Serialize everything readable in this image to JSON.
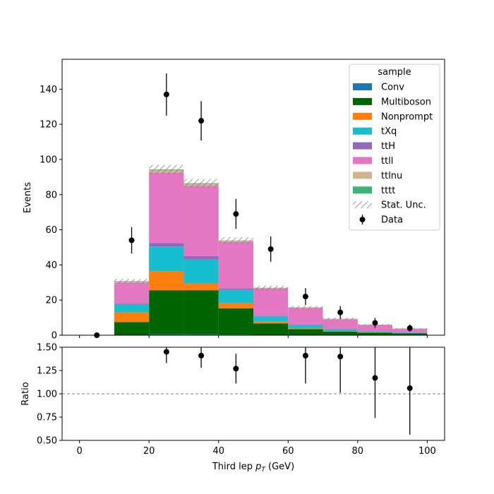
{
  "chart_data": [
    {
      "type": "bar",
      "stacked": true,
      "ylabel": "Events",
      "xlim": [
        -5,
        105
      ],
      "ylim": [
        0,
        157
      ],
      "xticks": [
        0,
        20,
        40,
        60,
        80,
        100
      ],
      "yticks": [
        0,
        20,
        40,
        60,
        80,
        100,
        120,
        140
      ],
      "bin_edges": [
        0,
        10,
        20,
        30,
        40,
        50,
        60,
        70,
        80,
        90,
        100
      ],
      "series": [
        {
          "name": "Conv",
          "color": "#1f77b4",
          "values": [
            0,
            0,
            0.5,
            0.5,
            0.3,
            0.2,
            0,
            0,
            0,
            0
          ]
        },
        {
          "name": "Multiboson",
          "color": "#006400",
          "values": [
            0,
            7.5,
            25,
            25,
            15,
            6.5,
            3.5,
            2,
            1.5,
            1
          ]
        },
        {
          "name": "Nonprompt",
          "color": "#ff7f0e",
          "values": [
            0,
            5.5,
            11,
            4,
            3,
            1,
            0.5,
            0.3,
            0.2,
            0
          ]
        },
        {
          "name": "tXq",
          "color": "#17becf",
          "values": [
            0,
            4.5,
            14,
            13.5,
            7.5,
            3,
            1.8,
            1.2,
            0.5,
            0.5
          ]
        },
        {
          "name": "ttH",
          "color": "#9467bd",
          "values": [
            0,
            0.5,
            2,
            2,
            0.7,
            0.3,
            0.2,
            0.1,
            0.1,
            0.1
          ]
        },
        {
          "name": "ttll",
          "color": "#e377c2",
          "values": [
            0,
            12,
            40,
            40,
            26.5,
            15.5,
            9.5,
            5.5,
            3.5,
            2
          ]
        },
        {
          "name": "ttlnu",
          "color": "#d2b48c",
          "values": [
            0,
            0.7,
            1.5,
            1.2,
            0.7,
            0.4,
            0.3,
            0.2,
            0.1,
            0.1
          ]
        },
        {
          "name": "tttt",
          "color": "#3cb371",
          "values": [
            0,
            0.1,
            0.3,
            0.3,
            0.2,
            0.1,
            0.1,
            0.1,
            0.1,
            0.1
          ]
        }
      ],
      "stat_unc": [
        0,
        1.3,
        2.6,
        2.4,
        1.9,
        1.2,
        0.8,
        0.6,
        0.4,
        0.3
      ],
      "stat_unc_label": "Stat. Unc.",
      "data": {
        "name": "Data",
        "x": [
          5,
          15,
          25,
          35,
          45,
          55,
          65,
          75,
          85,
          95
        ],
        "y": [
          0,
          54,
          137,
          122,
          69,
          49,
          22,
          13,
          7,
          4
        ],
        "yerr": [
          0,
          7.5,
          12,
          11.2,
          8.5,
          7.2,
          4.8,
          3.6,
          2.8,
          2
        ]
      },
      "legend": {
        "title": "sample",
        "position": "upper-right"
      }
    },
    {
      "type": "scatter",
      "xlabel": "Third lep $p_T$ (GeV)",
      "ylabel": "Ratio",
      "xlim": [
        -5,
        105
      ],
      "ylim": [
        0.5,
        1.5
      ],
      "xticks": [
        0,
        20,
        40,
        60,
        80,
        100
      ],
      "yticks": [
        "0.50",
        "0.75",
        "1.00",
        "1.25",
        "1.50"
      ],
      "reference_line": 1.0,
      "x": [
        25,
        35,
        45,
        65,
        75,
        85,
        95
      ],
      "y": [
        1.45,
        1.41,
        1.27,
        1.41,
        1.4,
        1.17,
        1.06
      ],
      "yerr": [
        0.12,
        0.13,
        0.16,
        0.3,
        0.39,
        0.43,
        0.5
      ]
    }
  ]
}
